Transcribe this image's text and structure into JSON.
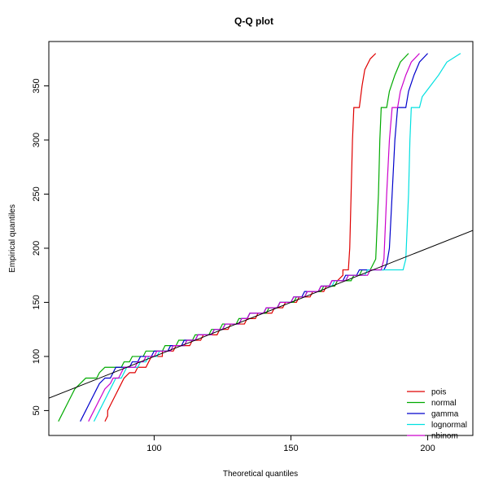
{
  "chart_data": {
    "type": "line",
    "title": "Q-Q plot",
    "xlabel": "Theoretical quantiles",
    "ylabel": "Empirical quantiles",
    "xlim": [
      61.5,
      216.5
    ],
    "ylim": [
      27,
      391
    ],
    "xticks": [
      100,
      150,
      200
    ],
    "yticks": [
      50,
      100,
      150,
      200,
      250,
      300,
      350
    ],
    "legend_position": "bottom-right",
    "reference_line": {
      "color": "#000000",
      "intercept": 0,
      "slope": 1
    },
    "series": [
      {
        "name": "pois",
        "color": "#DF0000",
        "points": [
          [
            82,
            40
          ],
          [
            83,
            45
          ],
          [
            83,
            50
          ],
          [
            84,
            55
          ],
          [
            85,
            60
          ],
          [
            86,
            65
          ],
          [
            87,
            70
          ],
          [
            89,
            80
          ],
          [
            91,
            85
          ],
          [
            93,
            85
          ],
          [
            94,
            90
          ],
          [
            97,
            90
          ],
          [
            98,
            95
          ],
          [
            99,
            100
          ],
          [
            103,
            100
          ],
          [
            103,
            105
          ],
          [
            107,
            105
          ],
          [
            108,
            110
          ],
          [
            113,
            110
          ],
          [
            114,
            115
          ],
          [
            117,
            115
          ],
          [
            118,
            120
          ],
          [
            123,
            120
          ],
          [
            124,
            125
          ],
          [
            127,
            125
          ],
          [
            128,
            130
          ],
          [
            133,
            130
          ],
          [
            134,
            135
          ],
          [
            137,
            135
          ],
          [
            138,
            140
          ],
          [
            143,
            140
          ],
          [
            144,
            145
          ],
          [
            147,
            145
          ],
          [
            148,
            150
          ],
          [
            152,
            150
          ],
          [
            153,
            155
          ],
          [
            157,
            155
          ],
          [
            158,
            160
          ],
          [
            162,
            160
          ],
          [
            163,
            165
          ],
          [
            166,
            165
          ],
          [
            167,
            170
          ],
          [
            169,
            175
          ],
          [
            169,
            180
          ],
          [
            171,
            180
          ],
          [
            171.5,
            200
          ],
          [
            172,
            250
          ],
          [
            172.5,
            300
          ],
          [
            173,
            330
          ],
          [
            175,
            330
          ],
          [
            176,
            350
          ],
          [
            177,
            365
          ],
          [
            179,
            375
          ],
          [
            181,
            380
          ]
        ]
      },
      {
        "name": "normal",
        "color": "#00AA00",
        "points": [
          [
            65,
            40
          ],
          [
            66,
            45
          ],
          [
            67,
            50
          ],
          [
            68,
            55
          ],
          [
            69,
            60
          ],
          [
            70,
            65
          ],
          [
            71,
            70
          ],
          [
            73,
            75
          ],
          [
            75,
            80
          ],
          [
            79,
            80
          ],
          [
            80,
            85
          ],
          [
            82,
            90
          ],
          [
            88,
            90
          ],
          [
            89,
            95
          ],
          [
            91,
            95
          ],
          [
            92,
            100
          ],
          [
            96,
            100
          ],
          [
            97,
            105
          ],
          [
            103,
            105
          ],
          [
            104,
            110
          ],
          [
            108,
            110
          ],
          [
            109,
            115
          ],
          [
            114,
            115
          ],
          [
            115,
            120
          ],
          [
            120,
            120
          ],
          [
            121,
            125
          ],
          [
            124,
            125
          ],
          [
            125,
            130
          ],
          [
            130,
            130
          ],
          [
            131,
            135
          ],
          [
            134,
            135
          ],
          [
            135,
            140
          ],
          [
            141,
            140
          ],
          [
            142,
            145
          ],
          [
            145,
            145
          ],
          [
            146,
            150
          ],
          [
            151,
            150
          ],
          [
            152,
            155
          ],
          [
            155,
            155
          ],
          [
            156,
            160
          ],
          [
            161,
            160
          ],
          [
            162,
            165
          ],
          [
            166,
            165
          ],
          [
            167,
            170
          ],
          [
            172,
            170
          ],
          [
            173,
            175
          ],
          [
            175,
            175
          ],
          [
            176,
            180
          ],
          [
            179,
            180
          ],
          [
            180,
            185
          ],
          [
            181,
            190
          ],
          [
            182,
            250
          ],
          [
            182.5,
            300
          ],
          [
            183,
            330
          ],
          [
            185,
            330
          ],
          [
            186,
            345
          ],
          [
            188,
            360
          ],
          [
            190,
            372
          ],
          [
            193,
            380
          ]
        ]
      },
      {
        "name": "gamma",
        "color": "#0000CC",
        "points": [
          [
            73,
            40
          ],
          [
            74,
            45
          ],
          [
            75,
            50
          ],
          [
            76,
            55
          ],
          [
            77,
            60
          ],
          [
            78,
            65
          ],
          [
            79,
            70
          ],
          [
            80,
            75
          ],
          [
            82,
            80
          ],
          [
            84,
            80
          ],
          [
            85,
            85
          ],
          [
            86,
            90
          ],
          [
            91,
            90
          ],
          [
            92,
            95
          ],
          [
            94,
            95
          ],
          [
            95,
            100
          ],
          [
            99,
            100
          ],
          [
            100,
            105
          ],
          [
            105,
            105
          ],
          [
            106,
            110
          ],
          [
            110,
            110
          ],
          [
            111,
            115
          ],
          [
            115,
            115
          ],
          [
            116,
            120
          ],
          [
            121,
            120
          ],
          [
            122,
            125
          ],
          [
            125,
            125
          ],
          [
            126,
            130
          ],
          [
            131,
            130
          ],
          [
            132,
            135
          ],
          [
            134,
            135
          ],
          [
            135,
            140
          ],
          [
            140,
            140
          ],
          [
            141,
            145
          ],
          [
            145,
            145
          ],
          [
            146,
            150
          ],
          [
            150,
            150
          ],
          [
            151,
            155
          ],
          [
            154,
            155
          ],
          [
            155,
            160
          ],
          [
            160,
            160
          ],
          [
            161,
            165
          ],
          [
            164,
            165
          ],
          [
            165,
            170
          ],
          [
            169,
            170
          ],
          [
            170,
            175
          ],
          [
            174,
            175
          ],
          [
            175,
            180
          ],
          [
            184,
            180
          ],
          [
            185,
            185
          ],
          [
            186,
            200
          ],
          [
            187,
            250
          ],
          [
            188,
            300
          ],
          [
            189,
            330
          ],
          [
            192,
            330
          ],
          [
            193,
            345
          ],
          [
            195,
            360
          ],
          [
            197,
            372
          ],
          [
            200,
            380
          ]
        ]
      },
      {
        "name": "lognormal",
        "color": "#00E0E0",
        "points": [
          [
            78,
            40
          ],
          [
            79,
            45
          ],
          [
            80,
            50
          ],
          [
            81,
            55
          ],
          [
            82,
            60
          ],
          [
            83,
            65
          ],
          [
            84,
            70
          ],
          [
            85,
            75
          ],
          [
            86,
            80
          ],
          [
            88,
            80
          ],
          [
            89,
            85
          ],
          [
            90,
            90
          ],
          [
            94,
            90
          ],
          [
            95,
            95
          ],
          [
            97,
            95
          ],
          [
            98,
            100
          ],
          [
            101,
            100
          ],
          [
            102,
            105
          ],
          [
            106,
            105
          ],
          [
            107,
            110
          ],
          [
            111,
            110
          ],
          [
            112,
            115
          ],
          [
            115,
            115
          ],
          [
            116,
            120
          ],
          [
            121,
            120
          ],
          [
            122,
            125
          ],
          [
            125,
            125
          ],
          [
            126,
            130
          ],
          [
            131,
            130
          ],
          [
            132,
            135
          ],
          [
            134,
            135
          ],
          [
            135,
            140
          ],
          [
            140,
            140
          ],
          [
            141,
            145
          ],
          [
            145,
            145
          ],
          [
            146,
            150
          ],
          [
            150,
            150
          ],
          [
            151,
            155
          ],
          [
            155,
            155
          ],
          [
            156,
            160
          ],
          [
            160,
            160
          ],
          [
            161,
            165
          ],
          [
            165,
            165
          ],
          [
            166,
            170
          ],
          [
            170,
            170
          ],
          [
            171,
            175
          ],
          [
            177,
            175
          ],
          [
            178,
            180
          ],
          [
            191,
            180
          ],
          [
            192,
            190
          ],
          [
            193,
            250
          ],
          [
            193.5,
            300
          ],
          [
            194,
            330
          ],
          [
            197,
            330
          ],
          [
            198,
            340
          ],
          [
            201,
            350
          ],
          [
            204,
            360
          ],
          [
            207,
            372
          ],
          [
            212,
            380
          ]
        ]
      },
      {
        "name": "nbinom",
        "color": "#CC00CC",
        "points": [
          [
            76,
            40
          ],
          [
            77,
            45
          ],
          [
            78,
            50
          ],
          [
            79,
            55
          ],
          [
            80,
            60
          ],
          [
            81,
            65
          ],
          [
            82,
            70
          ],
          [
            84,
            75
          ],
          [
            85,
            80
          ],
          [
            87,
            80
          ],
          [
            88,
            85
          ],
          [
            89,
            90
          ],
          [
            93,
            90
          ],
          [
            94,
            95
          ],
          [
            96,
            95
          ],
          [
            97,
            100
          ],
          [
            100,
            100
          ],
          [
            101,
            105
          ],
          [
            106,
            105
          ],
          [
            107,
            110
          ],
          [
            111,
            110
          ],
          [
            112,
            115
          ],
          [
            115,
            115
          ],
          [
            116,
            120
          ],
          [
            121,
            120
          ],
          [
            122,
            125
          ],
          [
            125,
            125
          ],
          [
            126,
            130
          ],
          [
            131,
            130
          ],
          [
            132,
            135
          ],
          [
            134,
            135
          ],
          [
            135,
            140
          ],
          [
            140,
            140
          ],
          [
            141,
            145
          ],
          [
            145,
            145
          ],
          [
            146,
            150
          ],
          [
            150,
            150
          ],
          [
            151,
            155
          ],
          [
            155,
            155
          ],
          [
            156,
            160
          ],
          [
            160,
            160
          ],
          [
            161,
            165
          ],
          [
            164,
            165
          ],
          [
            165,
            170
          ],
          [
            170,
            170
          ],
          [
            171,
            175
          ],
          [
            178,
            175
          ],
          [
            179,
            180
          ],
          [
            183,
            180
          ],
          [
            184,
            190
          ],
          [
            185,
            250
          ],
          [
            186,
            300
          ],
          [
            187,
            330
          ],
          [
            189,
            330
          ],
          [
            190,
            345
          ],
          [
            192,
            360
          ],
          [
            194,
            372
          ],
          [
            197,
            380
          ]
        ]
      }
    ]
  }
}
